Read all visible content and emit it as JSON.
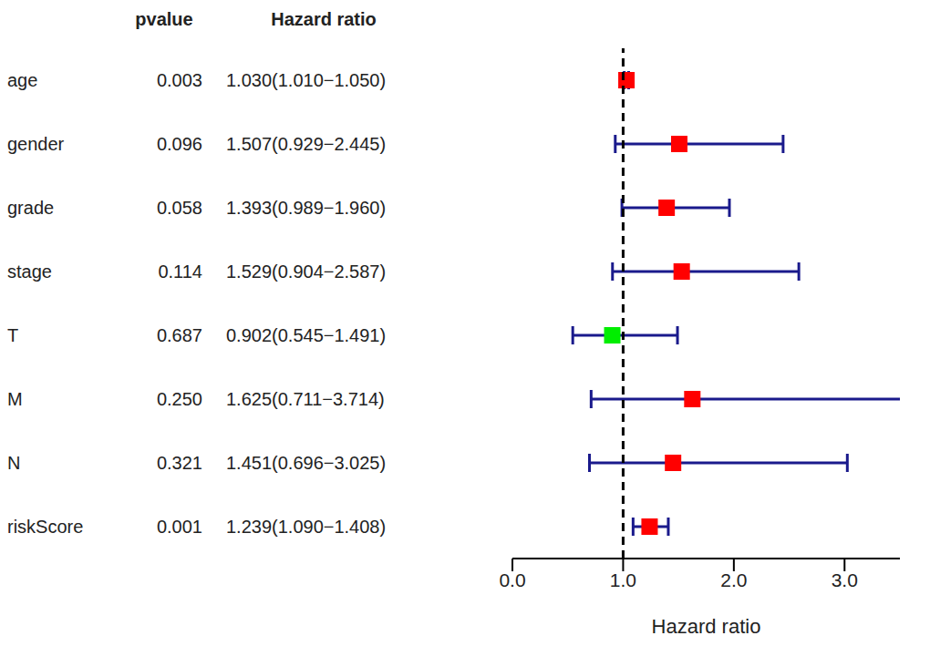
{
  "chart_data": {
    "type": "forest",
    "columns": [
      "pvalue",
      "Hazard ratio"
    ],
    "categories": [
      "age",
      "gender",
      "grade",
      "stage",
      "T",
      "M",
      "N",
      "riskScore"
    ],
    "values": [
      1.03,
      1.507,
      1.393,
      1.529,
      0.902,
      1.625,
      1.451,
      1.239
    ],
    "ci_lower": [
      1.01,
      0.929,
      0.989,
      0.904,
      0.545,
      0.711,
      0.696,
      1.09
    ],
    "ci_upper": [
      1.05,
      2.445,
      1.96,
      2.587,
      1.491,
      3.714,
      3.025,
      1.408
    ],
    "value_labels": [
      "1.030(1.010−1.050)",
      "1.507(0.929−2.445)",
      "1.393(0.989−1.960)",
      "1.529(0.904−2.587)",
      "0.902(0.545−1.491)",
      "1.625(0.711−3.714)",
      "1.451(0.696−3.025)",
      "1.239(1.090−1.408)"
    ],
    "pvalues": [
      "0.003",
      "0.096",
      "0.058",
      "0.114",
      "0.687",
      "0.250",
      "0.321",
      "0.001"
    ],
    "colors": [
      "#ff0000",
      "#ff0000",
      "#ff0000",
      "#ff0000",
      "#00ee00",
      "#ff0000",
      "#ff0000",
      "#ff0000"
    ],
    "xlabel": "Hazard ratio",
    "xlim": [
      0,
      3.5
    ],
    "xticks": [
      {
        "value": 0,
        "label": "0.0"
      },
      {
        "value": 1,
        "label": "1.0"
      },
      {
        "value": 2,
        "label": "2.0"
      },
      {
        "value": 3,
        "label": "3.0"
      }
    ],
    "reference_line": 1
  }
}
